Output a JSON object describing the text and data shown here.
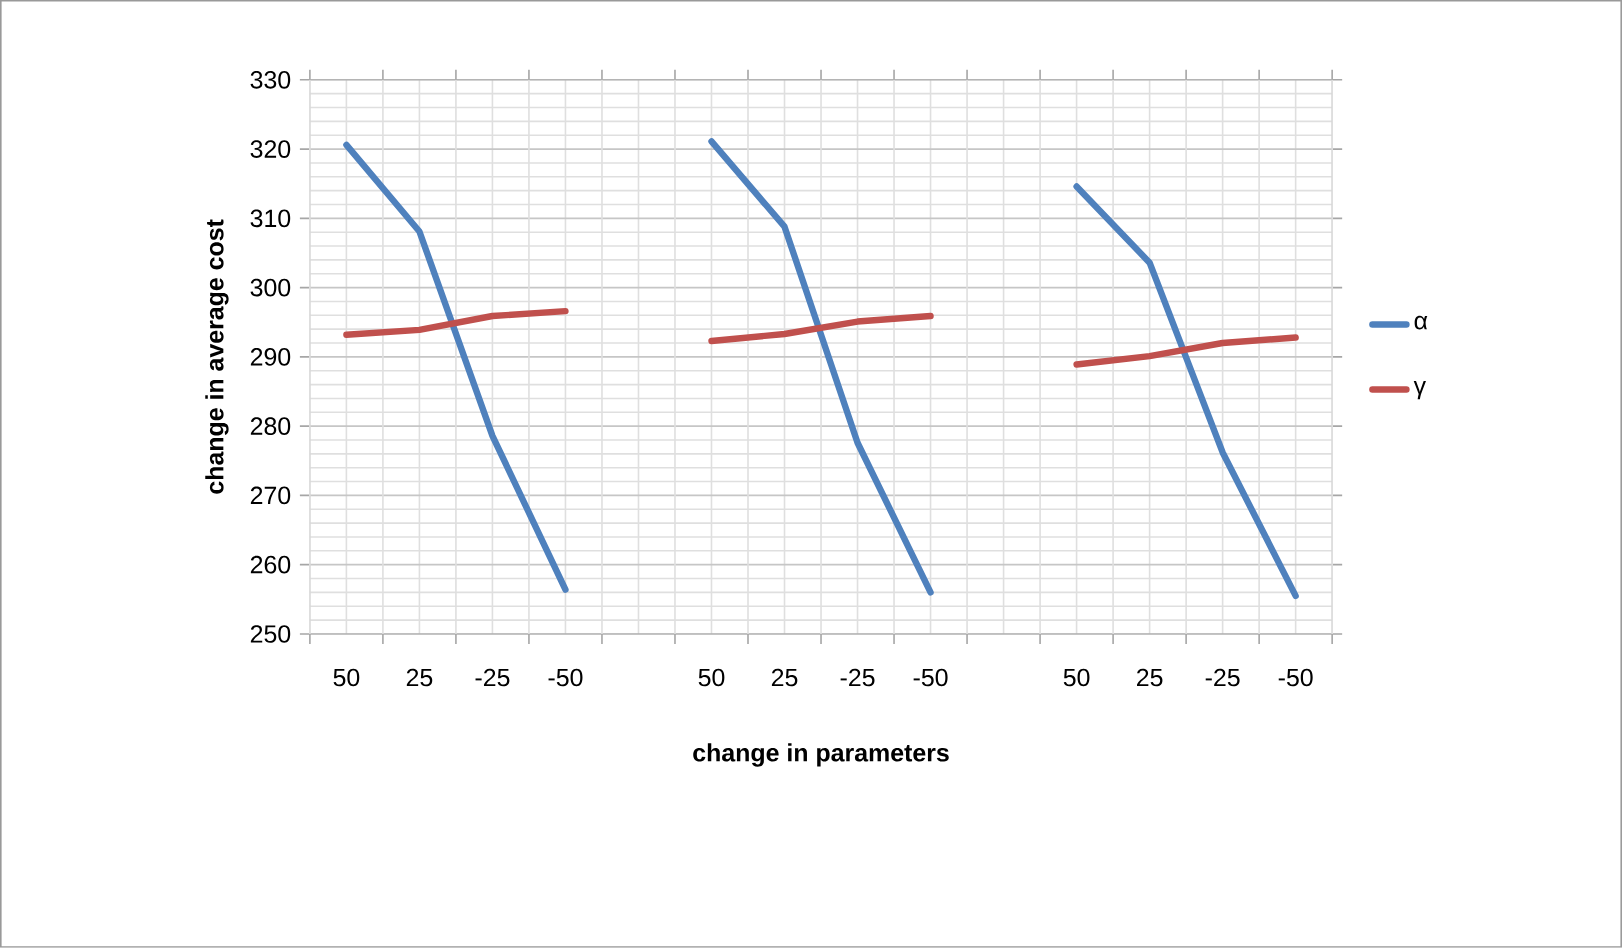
{
  "chart_data": {
    "type": "line",
    "xlabel": "change in parameters",
    "ylabel": "change in average cost",
    "categories": [
      "50",
      "25",
      "-25",
      "-50",
      null,
      "50",
      "25",
      "-25",
      "-50",
      null,
      "50",
      "25",
      "-25",
      "-50"
    ],
    "series": [
      {
        "name": "α",
        "color": "#4f81bd",
        "values": [
          320.6,
          308.1,
          278.6,
          256.4,
          null,
          321.1,
          308.8,
          277.6,
          256.0,
          null,
          314.6,
          303.6,
          276.2,
          255.5
        ]
      },
      {
        "name": "γ",
        "color": "#c0504d",
        "values": [
          293.2,
          293.9,
          295.9,
          296.6,
          null,
          292.3,
          293.3,
          295.1,
          295.9,
          null,
          288.9,
          290.1,
          292.0,
          292.8
        ]
      }
    ],
    "ylim": [
      250,
      330
    ],
    "yticks": [
      250,
      260,
      270,
      280,
      290,
      300,
      310,
      320,
      330
    ],
    "grid": true,
    "legend": "right",
    "marker": "none",
    "line_style": "solid"
  }
}
